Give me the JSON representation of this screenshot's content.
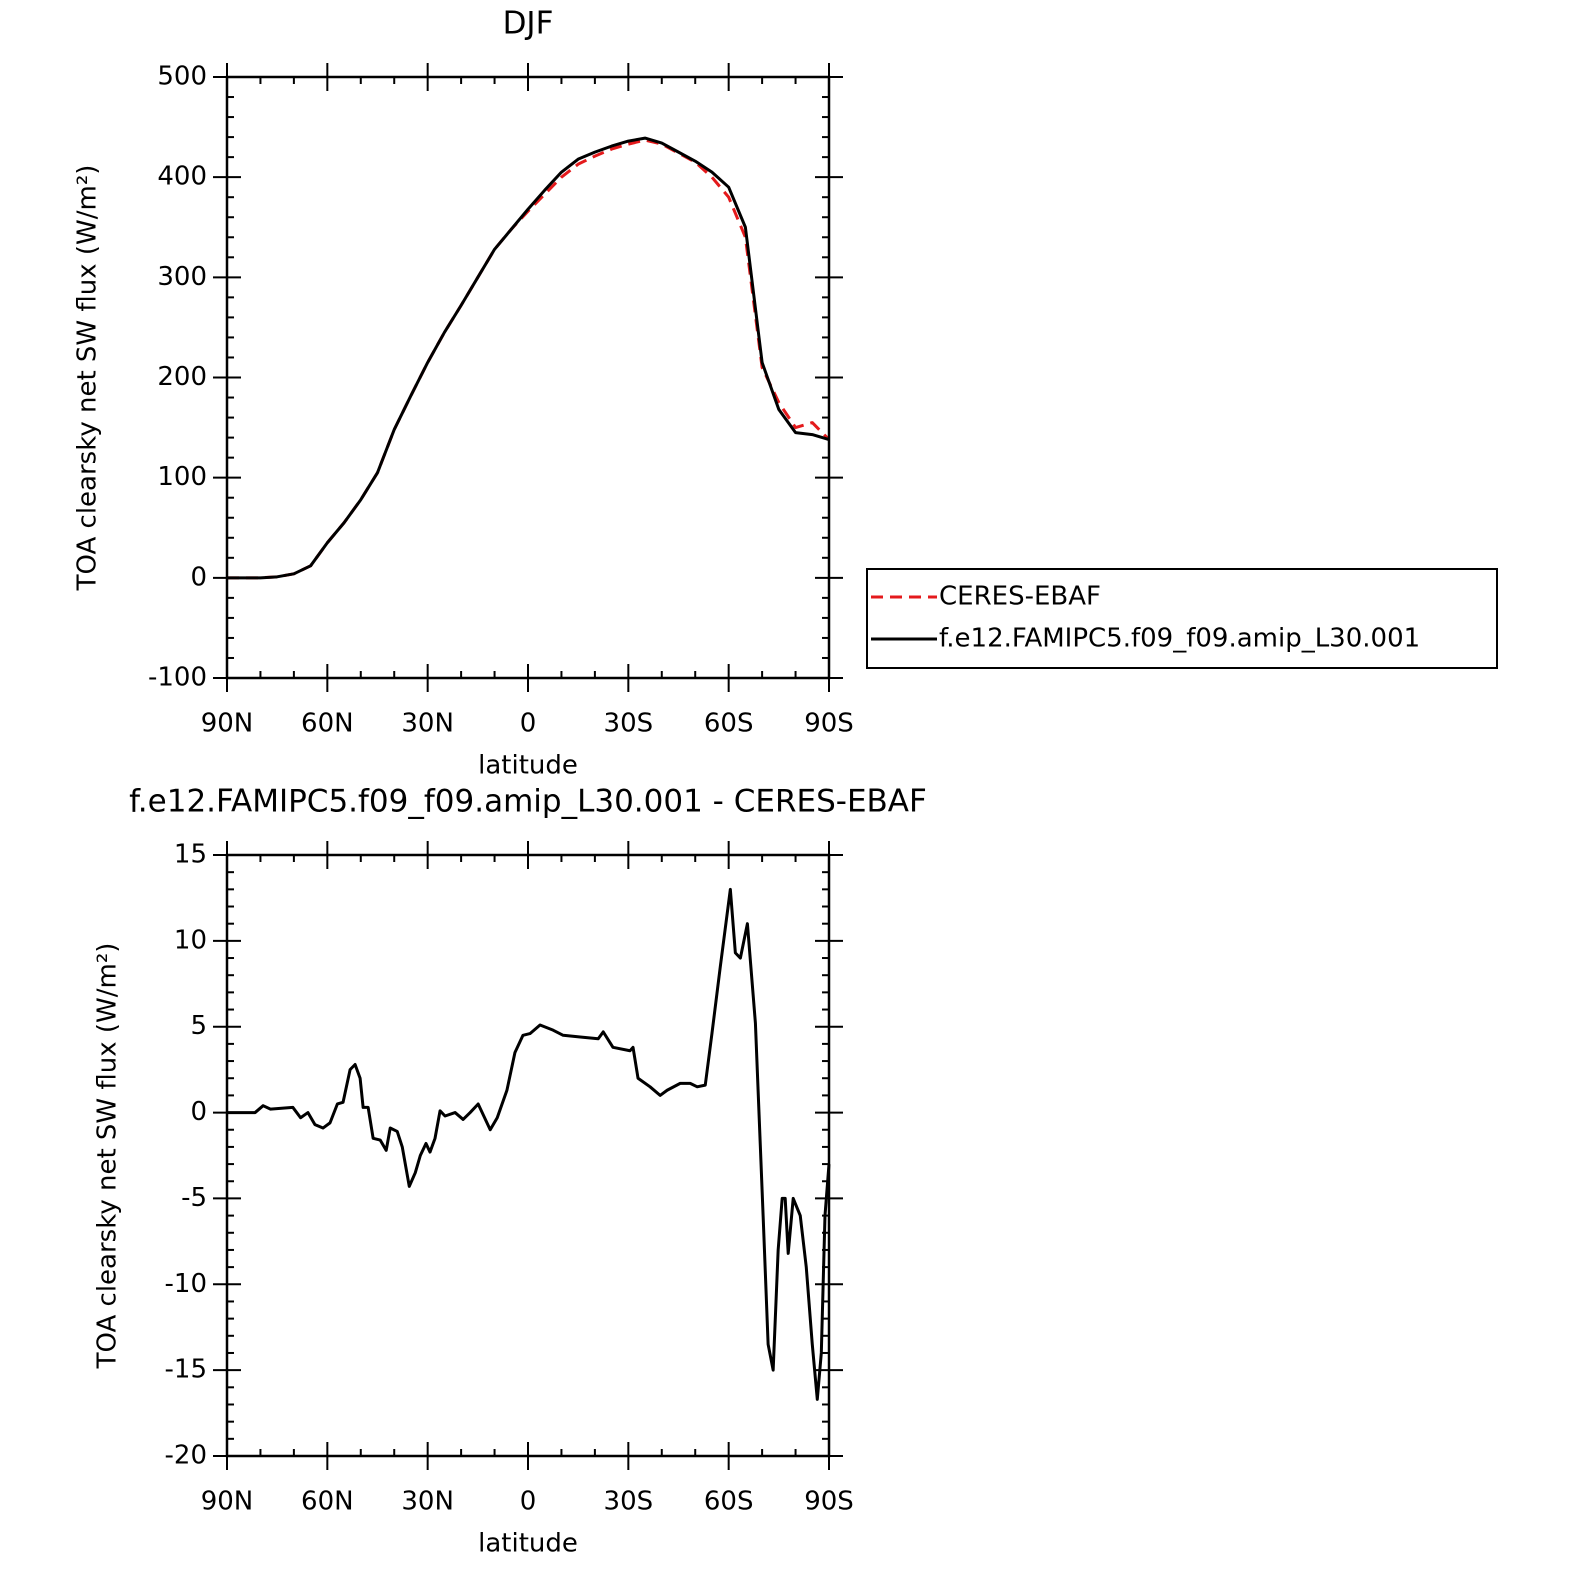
{
  "chart_data": [
    {
      "type": "line",
      "title": "DJF",
      "xlabel": "latitude",
      "ylabel": "TOA clearsky net SW flux (W/m²)",
      "x": [
        90,
        85,
        80,
        75,
        70,
        65,
        60,
        55,
        50,
        45,
        40,
        35,
        30,
        25,
        20,
        15,
        10,
        5,
        0,
        -5,
        -10,
        -15,
        -20,
        -25,
        -30,
        -35,
        -40,
        -45,
        -50,
        -55,
        -60,
        -65,
        -70,
        -75,
        -80,
        -85,
        -90
      ],
      "series": [
        {
          "name": "CERES-EBAF",
          "color": "#e41a1c",
          "style": "dashed",
          "values": [
            0,
            0,
            0,
            1,
            4,
            12,
            35,
            55,
            78,
            105,
            148,
            182,
            215,
            245,
            272,
            300,
            328,
            348,
            366,
            383,
            400,
            413,
            421,
            428,
            433,
            437,
            433,
            424,
            415,
            400,
            380,
            340,
            210,
            175,
            150,
            155,
            138
          ]
        },
        {
          "name": "f.e12.FAMIPC5.f09_f09.amip_L30.001",
          "color": "#000000",
          "style": "solid",
          "values": [
            0,
            0,
            0,
            1,
            4,
            12,
            35,
            55,
            78,
            105,
            148,
            182,
            215,
            245,
            272,
            300,
            328,
            348,
            368,
            387,
            405,
            418,
            425,
            431,
            436,
            439,
            434,
            425,
            416,
            405,
            390,
            350,
            215,
            168,
            145,
            143,
            138
          ]
        }
      ],
      "xlim": [
        90,
        -90
      ],
      "xticks": [
        {
          "value": 90,
          "label": "90N"
        },
        {
          "value": 60,
          "label": "60N"
        },
        {
          "value": 30,
          "label": "30N"
        },
        0,
        {
          "value": -30,
          "label": "30S"
        },
        {
          "value": -60,
          "label": "60S"
        },
        {
          "value": -90,
          "label": "90S"
        }
      ],
      "ylim": [
        -100,
        500
      ],
      "yticks": [
        -100,
        0,
        100,
        200,
        300,
        400,
        500
      ],
      "legend": "right"
    },
    {
      "type": "line",
      "title": "f.e12.FAMIPC5.f09_f09.amip_L30.001 - CERES-EBAF",
      "xlabel": "latitude",
      "ylabel": "TOA clearsky net SW flux (W/m²)",
      "x": [
        90,
        81.6,
        79.2,
        77,
        70.3,
        68,
        65.8,
        63.7,
        61.3,
        59.2,
        57,
        55.3,
        53.2,
        51.7,
        50.2,
        49.3,
        47.8,
        46.3,
        44.2,
        42.4,
        41.2,
        39.1,
        37.6,
        35.5,
        33.7,
        32.2,
        30.5,
        29.3,
        27.8,
        26.3,
        24.8,
        21.8,
        19.4,
        17.3,
        14.9,
        11.3,
        9.2,
        6.3,
        3.9,
        1.5,
        -0.6,
        -3.6,
        -7.5,
        -10.5,
        -15.6,
        -21,
        -22.5,
        -25.4,
        -30.5,
        -31.4,
        -32.9,
        -36.5,
        -39.5,
        -41.6,
        -45.5,
        -48.5,
        -50.6,
        -53,
        -55,
        -57.5,
        -60.5,
        -62,
        -63.5,
        -65.6,
        -68,
        -70.3,
        -71.8,
        -73.3,
        -74.8,
        -76,
        -76.9,
        -77.8,
        -79.3,
        -81.4,
        -83.2,
        -85,
        -86.5,
        -87.7,
        -88.8,
        -90
      ],
      "values": [
        0,
        0,
        0.4,
        0.2,
        0.3,
        -0.3,
        0,
        -0.7,
        -0.9,
        -0.6,
        0.5,
        0.6,
        2.5,
        2.8,
        2,
        0.3,
        0.3,
        -1.5,
        -1.6,
        -2.2,
        -0.9,
        -1.1,
        -2,
        -4.3,
        -3.5,
        -2.5,
        -1.8,
        -2.3,
        -1.5,
        0.1,
        -0.2,
        0,
        -0.4,
        0,
        0.5,
        -1,
        -0.3,
        1.3,
        3.5,
        4.5,
        4.6,
        5.1,
        4.8,
        4.5,
        4.4,
        4.3,
        4.7,
        3.8,
        3.6,
        3.8,
        2,
        1.5,
        1,
        1.3,
        1.7,
        1.7,
        1.5,
        1.6,
        4.6,
        8.5,
        13,
        9.3,
        9,
        11,
        5.2,
        -6,
        -13.5,
        -15,
        -8,
        -5,
        -5,
        -8.2,
        -5,
        -6,
        -9,
        -13.5,
        -16.7,
        -14,
        -6,
        -3
      ],
      "color": "#000000",
      "style": "solid",
      "xlim": [
        90,
        -90
      ],
      "xticks": [
        {
          "value": 90,
          "label": "90N"
        },
        {
          "value": 60,
          "label": "60N"
        },
        {
          "value": 30,
          "label": "30N"
        },
        0,
        {
          "value": -30,
          "label": "30S"
        },
        {
          "value": -60,
          "label": "60S"
        },
        {
          "value": -90,
          "label": "90S"
        }
      ],
      "ylim": [
        -20,
        15
      ],
      "yticks": [
        -20,
        -15,
        -10,
        -5,
        0,
        5,
        10,
        15
      ]
    }
  ]
}
